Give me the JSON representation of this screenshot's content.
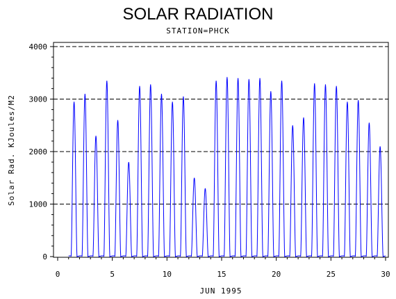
{
  "chart_data": {
    "type": "line",
    "title": "SOLAR RADIATION",
    "subtitle": "STATION=PHCK",
    "xlabel": "JUN 1995",
    "ylabel": "Solar Rad. KJoules/M2",
    "xlim": [
      0,
      30
    ],
    "ylim": [
      0,
      4000
    ],
    "x_ticks": [
      "0",
      "5",
      "10",
      "15",
      "20",
      "25",
      "30"
    ],
    "y_ticks": [
      "0",
      "1000",
      "2000",
      "3000",
      "4000"
    ],
    "grid": "horizontal dashed at 1000, 2000, 3000, 4000",
    "series_color": "#0000ff",
    "series": [
      {
        "daily_peaks": [
          {
            "day": 1,
            "peak": 2950
          },
          {
            "day": 2,
            "peak": 3100
          },
          {
            "day": 3,
            "peak": 2300
          },
          {
            "day": 4,
            "peak": 3350
          },
          {
            "day": 5,
            "peak": 2600
          },
          {
            "day": 6,
            "peak": 1800
          },
          {
            "day": 7,
            "peak": 3250
          },
          {
            "day": 8,
            "peak": 3280
          },
          {
            "day": 9,
            "peak": 3100
          },
          {
            "day": 10,
            "peak": 2950
          },
          {
            "day": 11,
            "peak": 3050
          },
          {
            "day": 12,
            "peak": 1500
          },
          {
            "day": 13,
            "peak": 1300
          },
          {
            "day": 14,
            "peak": 3350
          },
          {
            "day": 15,
            "peak": 3420
          },
          {
            "day": 16,
            "peak": 3400
          },
          {
            "day": 17,
            "peak": 3380
          },
          {
            "day": 18,
            "peak": 3400
          },
          {
            "day": 19,
            "peak": 3150
          },
          {
            "day": 20,
            "peak": 3350
          },
          {
            "day": 21,
            "peak": 2500
          },
          {
            "day": 22,
            "peak": 2650
          },
          {
            "day": 23,
            "peak": 3300
          },
          {
            "day": 24,
            "peak": 3280
          },
          {
            "day": 25,
            "peak": 3250
          },
          {
            "day": 26,
            "peak": 2950
          },
          {
            "day": 27,
            "peak": 2980
          },
          {
            "day": 28,
            "peak": 2550
          },
          {
            "day": 29,
            "peak": 2100
          }
        ]
      }
    ]
  }
}
